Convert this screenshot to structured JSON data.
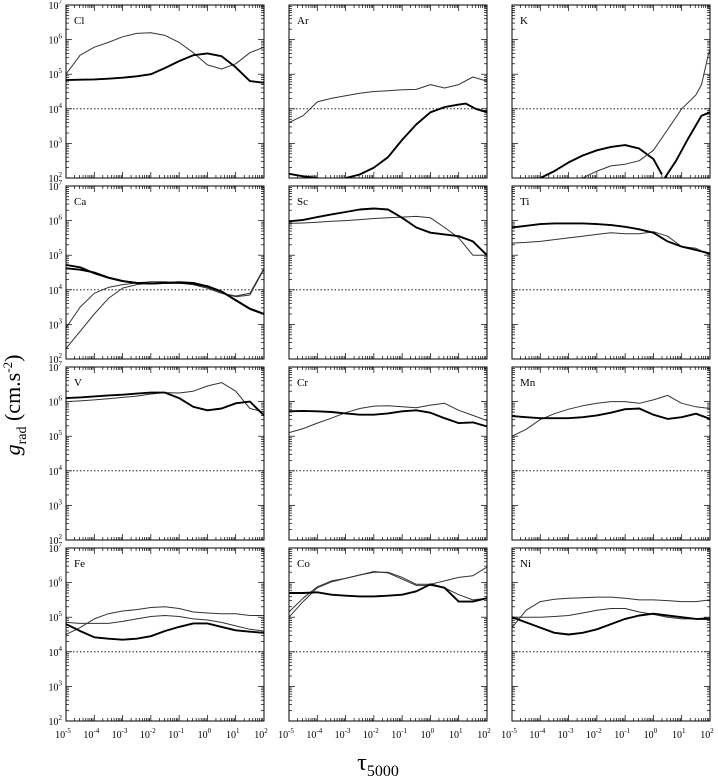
{
  "figure": {
    "ylabel": "g_rad (cm.s^-2)",
    "ylabel_main": "g",
    "ylabel_sub": "rad",
    "ylabel_rest": " (cm.s",
    "ylabel_sup": "-2",
    "ylabel_close": ")",
    "xlabel_main": "τ",
    "xlabel_sub": "5000"
  },
  "chart_data": [
    {
      "type": "line",
      "title": "Cl",
      "xscale": "log",
      "yscale": "log",
      "xlim": [
        1e-05,
        100
      ],
      "ylim": [
        100,
        10000000.0
      ],
      "reference_line": 10000.0,
      "x": [
        -5,
        -4.5,
        -4,
        -3.5,
        -3,
        -2.5,
        -2,
        -1.5,
        -1,
        -0.5,
        0,
        0.5,
        1,
        1.5,
        2
      ],
      "series": [
        {
          "style": "thin",
          "values": [
            5.0,
            5.55,
            5.78,
            5.92,
            6.08,
            6.18,
            6.2,
            6.12,
            5.92,
            5.62,
            5.27,
            5.15,
            5.3,
            5.62,
            5.78
          ]
        },
        {
          "style": "thick",
          "values": [
            4.83,
            4.84,
            4.85,
            4.87,
            4.9,
            4.94,
            5.0,
            5.18,
            5.38,
            5.55,
            5.6,
            5.52,
            5.2,
            4.8,
            4.75
          ]
        }
      ]
    },
    {
      "type": "line",
      "title": "Ar",
      "xscale": "log",
      "yscale": "log",
      "xlim": [
        1e-05,
        100
      ],
      "ylim": [
        100,
        10000000.0
      ],
      "reference_line": 10000.0,
      "x": [
        -5,
        -4.5,
        -4,
        -3.5,
        -3,
        -2.5,
        -2,
        -1.5,
        -1,
        -0.5,
        0,
        0.5,
        1,
        1.5,
        2
      ],
      "series": [
        {
          "style": "thin",
          "values": [
            3.6,
            3.8,
            4.2,
            4.3,
            4.38,
            4.45,
            4.5,
            4.52,
            4.55,
            4.56,
            4.7,
            4.6,
            4.7,
            4.92,
            4.8
          ],
          "start": -5
        },
        {
          "style": "thick",
          "values": [
            2.12,
            2.05,
            2.0
          ],
          "x": [
            -5,
            -4.5,
            -4
          ]
        },
        {
          "style": "thick",
          "values": [
            2.0,
            2.1,
            2.3,
            2.6,
            3.1,
            3.55,
            3.9,
            4.05,
            4.12,
            4.15,
            4.0,
            3.9
          ],
          "x": [
            -3,
            -2.5,
            -2,
            -1.5,
            -1,
            -0.5,
            0,
            0.5,
            1,
            1.25,
            1.6,
            2
          ]
        }
      ]
    },
    {
      "type": "line",
      "title": "K",
      "xscale": "log",
      "yscale": "log",
      "xlim": [
        1e-05,
        100
      ],
      "ylim": [
        100,
        10000000.0
      ],
      "reference_line": 10000.0,
      "x": [
        -4,
        -3.5,
        -3,
        -2.5,
        -2,
        -1.5,
        -1,
        -0.5,
        0,
        0.3
      ],
      "series": [
        {
          "style": "thick",
          "values": [
            2.0,
            2.2,
            2.45,
            2.65,
            2.8,
            2.9,
            2.95,
            2.85,
            2.55,
            2.1
          ]
        },
        {
          "style": "thin",
          "values": [
            2.0,
            2.2,
            2.35,
            2.4,
            2.5,
            2.8,
            3.4,
            4.0,
            4.4,
            4.7,
            5.6,
            5.7
          ],
          "x": [
            -2.5,
            -2,
            -1.5,
            -1,
            -0.5,
            0,
            0.5,
            1,
            1.5,
            1.7,
            1.95,
            2
          ]
        },
        {
          "style": "thick",
          "values": [
            2.0,
            2.5,
            3.1,
            3.8,
            3.9
          ],
          "x": [
            0.4,
            0.8,
            1.2,
            1.7,
            2
          ]
        }
      ]
    },
    {
      "type": "line",
      "title": "Ca",
      "xscale": "log",
      "yscale": "log",
      "xlim": [
        1e-05,
        100
      ],
      "ylim": [
        100,
        10000000.0
      ],
      "reference_line": 10000.0,
      "x": [
        -5,
        -4.5,
        -4,
        -3.5,
        -3,
        -2.5,
        -2,
        -1.5,
        -1,
        -0.5,
        0,
        0.5,
        1,
        1.5,
        2
      ],
      "series": [
        {
          "style": "thin",
          "values": [
            2.9,
            3.5,
            3.9,
            4.07,
            4.15,
            4.2,
            4.23,
            4.23,
            4.2,
            4.15,
            4.05,
            3.9,
            3.82,
            3.9,
            4.62
          ]
        },
        {
          "style": "thin",
          "values": [
            2.3,
            2.8,
            3.3,
            3.75,
            4.05,
            4.15,
            4.2,
            4.2,
            4.2,
            4.15,
            4.05,
            3.9,
            3.8,
            3.85,
            4.6
          ]
        },
        {
          "style": "thick",
          "values": [
            4.62,
            4.58,
            4.5,
            4.35,
            4.25,
            4.2,
            4.18,
            4.2,
            4.22,
            4.2,
            4.1,
            3.95,
            3.7,
            3.45,
            3.3
          ]
        },
        {
          "style": "thick",
          "values": [
            4.72,
            4.65,
            4.48,
            4.35,
            4.25,
            4.2,
            4.18,
            4.2,
            4.2,
            4.18,
            4.1,
            3.95,
            3.7,
            3.45,
            3.3
          ]
        }
      ]
    },
    {
      "type": "line",
      "title": "Sc",
      "xscale": "log",
      "yscale": "log",
      "xlim": [
        1e-05,
        100
      ],
      "ylim": [
        100,
        10000000.0
      ],
      "reference_line": 10000.0,
      "x": [
        -5,
        -4.5,
        -4,
        -3.5,
        -3,
        -2.5,
        -2,
        -1.5,
        -1,
        -0.5,
        0,
        0.5,
        1,
        1.5,
        2
      ],
      "series": [
        {
          "style": "thin",
          "values": [
            5.92,
            5.93,
            5.95,
            5.98,
            6.0,
            6.03,
            6.06,
            6.08,
            6.1,
            6.12,
            6.08,
            5.8,
            5.5,
            5.0,
            5.0
          ]
        },
        {
          "style": "thick",
          "values": [
            5.98,
            6.02,
            6.1,
            6.18,
            6.25,
            6.32,
            6.35,
            6.32,
            6.08,
            5.8,
            5.65,
            5.6,
            5.55,
            5.4,
            5.0
          ]
        }
      ]
    },
    {
      "type": "line",
      "title": "Ti",
      "xscale": "log",
      "yscale": "log",
      "xlim": [
        1e-05,
        100
      ],
      "ylim": [
        100,
        10000000.0
      ],
      "reference_line": 10000.0,
      "x": [
        -5,
        -4.5,
        -4,
        -3.5,
        -3,
        -2.5,
        -2,
        -1.5,
        -1,
        -0.5,
        0,
        0.5,
        1,
        1.5,
        2
      ],
      "series": [
        {
          "style": "thin",
          "values": [
            5.35,
            5.37,
            5.4,
            5.45,
            5.5,
            5.55,
            5.6,
            5.65,
            5.62,
            5.62,
            5.68,
            5.55,
            5.25,
            5.2,
            5.0
          ]
        },
        {
          "style": "thick",
          "values": [
            5.8,
            5.85,
            5.9,
            5.92,
            5.92,
            5.92,
            5.9,
            5.87,
            5.82,
            5.75,
            5.65,
            5.4,
            5.25,
            5.15,
            5.05
          ]
        }
      ]
    },
    {
      "type": "line",
      "title": "V",
      "xscale": "log",
      "yscale": "log",
      "xlim": [
        1e-05,
        100
      ],
      "ylim": [
        100,
        10000000.0
      ],
      "reference_line": 10000.0,
      "x": [
        -5,
        -4.5,
        -4,
        -3.5,
        -3,
        -2.5,
        -2,
        -1.5,
        -1,
        -0.5,
        0,
        0.5,
        1,
        1.5,
        2
      ],
      "series": [
        {
          "style": "thin",
          "values": [
            6.0,
            6.02,
            6.05,
            6.08,
            6.12,
            6.16,
            6.22,
            6.26,
            6.25,
            6.3,
            6.45,
            6.55,
            6.3,
            5.8,
            5.7
          ]
        },
        {
          "style": "thick",
          "values": [
            6.1,
            6.12,
            6.15,
            6.18,
            6.2,
            6.23,
            6.26,
            6.26,
            6.1,
            5.85,
            5.75,
            5.8,
            5.95,
            6.0,
            5.6
          ]
        }
      ]
    },
    {
      "type": "line",
      "title": "Cr",
      "xscale": "log",
      "yscale": "log",
      "xlim": [
        1e-05,
        100
      ],
      "ylim": [
        100,
        10000000.0
      ],
      "reference_line": 10000.0,
      "x": [
        -5,
        -4.5,
        -4,
        -3.5,
        -3,
        -2.5,
        -2,
        -1.5,
        -1,
        -0.5,
        0,
        0.5,
        1,
        1.5,
        2
      ],
      "series": [
        {
          "style": "thin",
          "values": [
            5.1,
            5.22,
            5.38,
            5.52,
            5.68,
            5.8,
            5.87,
            5.88,
            5.85,
            5.82,
            5.9,
            5.95,
            5.75,
            5.6,
            5.45
          ]
        },
        {
          "style": "thick",
          "values": [
            5.72,
            5.73,
            5.72,
            5.7,
            5.66,
            5.62,
            5.62,
            5.66,
            5.72,
            5.75,
            5.68,
            5.52,
            5.38,
            5.4,
            5.28
          ]
        }
      ]
    },
    {
      "type": "line",
      "title": "Mn",
      "xscale": "log",
      "yscale": "log",
      "xlim": [
        1e-05,
        100
      ],
      "ylim": [
        100,
        10000000.0
      ],
      "reference_line": 10000.0,
      "x": [
        -5,
        -4.5,
        -4,
        -3.5,
        -3,
        -2.5,
        -2,
        -1.5,
        -1,
        -0.5,
        0,
        0.5,
        1,
        1.5,
        2
      ],
      "series": [
        {
          "style": "thin",
          "values": [
            5.0,
            5.2,
            5.48,
            5.65,
            5.78,
            5.88,
            5.95,
            6.0,
            6.0,
            5.95,
            6.05,
            6.18,
            5.95,
            5.85,
            5.8
          ]
        },
        {
          "style": "thick",
          "values": [
            5.58,
            5.55,
            5.52,
            5.52,
            5.52,
            5.55,
            5.6,
            5.68,
            5.78,
            5.8,
            5.62,
            5.5,
            5.55,
            5.65,
            5.5
          ]
        }
      ]
    },
    {
      "type": "line",
      "title": "Fe",
      "xscale": "log",
      "yscale": "log",
      "xlim": [
        1e-05,
        100
      ],
      "ylim": [
        100,
        10000000.0
      ],
      "reference_line": 10000.0,
      "x": [
        -5,
        -4.5,
        -4,
        -3.5,
        -3,
        -2.5,
        -2,
        -1.5,
        -1,
        -0.5,
        0,
        0.5,
        1,
        1.5,
        2
      ],
      "series": [
        {
          "style": "thin",
          "values": [
            4.5,
            4.7,
            4.95,
            5.1,
            5.18,
            5.22,
            5.28,
            5.3,
            5.25,
            5.15,
            5.12,
            5.1,
            5.1,
            5.05,
            5.05
          ]
        },
        {
          "style": "thin",
          "values": [
            4.85,
            4.82,
            4.82,
            4.82,
            4.88,
            4.95,
            5.02,
            5.05,
            5.02,
            4.95,
            4.92,
            4.85,
            4.75,
            4.65,
            4.6
          ]
        },
        {
          "style": "thick",
          "values": [
            4.8,
            4.6,
            4.42,
            4.38,
            4.35,
            4.38,
            4.45,
            4.6,
            4.72,
            4.82,
            4.82,
            4.72,
            4.62,
            4.58,
            4.55
          ]
        }
      ]
    },
    {
      "type": "line",
      "title": "Co",
      "xscale": "log",
      "yscale": "log",
      "xlim": [
        1e-05,
        100
      ],
      "ylim": [
        100,
        10000000.0
      ],
      "reference_line": 10000.0,
      "x": [
        -5,
        -4.5,
        -4,
        -3.5,
        -3,
        -2.5,
        -2,
        -1.5,
        -1,
        -0.5,
        0,
        0.5,
        1,
        1.5,
        2
      ],
      "series": [
        {
          "style": "thin",
          "values": [
            5.0,
            5.45,
            5.85,
            6.02,
            6.12,
            6.22,
            6.3,
            6.3,
            6.15,
            5.95,
            5.95,
            6.05,
            6.15,
            6.2,
            6.45
          ]
        },
        {
          "style": "thin",
          "values": [
            5.15,
            5.55,
            5.88,
            6.05,
            6.12,
            6.22,
            6.32,
            6.28,
            6.1,
            5.92,
            5.92,
            5.85,
            5.65,
            5.5,
            5.55
          ]
        },
        {
          "style": "thick",
          "values": [
            5.7,
            5.7,
            5.72,
            5.65,
            5.62,
            5.6,
            5.6,
            5.62,
            5.65,
            5.75,
            5.95,
            5.85,
            5.45,
            5.45,
            5.55
          ]
        }
      ]
    },
    {
      "type": "line",
      "title": "Ni",
      "xscale": "log",
      "yscale": "log",
      "xlim": [
        1e-05,
        100
      ],
      "ylim": [
        100,
        10000000.0
      ],
      "reference_line": 10000.0,
      "x": [
        -5,
        -4.5,
        -4,
        -3.5,
        -3,
        -2.5,
        -2,
        -1.5,
        -1,
        -0.5,
        0,
        0.5,
        1,
        1.5,
        2
      ],
      "series": [
        {
          "style": "thin",
          "values": [
            4.7,
            5.2,
            5.45,
            5.52,
            5.55,
            5.56,
            5.58,
            5.58,
            5.55,
            5.5,
            5.5,
            5.48,
            5.45,
            5.45,
            5.5
          ]
        },
        {
          "style": "thin",
          "values": [
            5.0,
            5.0,
            5.0,
            5.02,
            5.05,
            5.12,
            5.2,
            5.25,
            5.25,
            5.15,
            5.08,
            5.0,
            4.95,
            4.95,
            5.0
          ]
        },
        {
          "style": "thick",
          "values": [
            5.0,
            4.85,
            4.7,
            4.55,
            4.5,
            4.55,
            4.65,
            4.8,
            4.95,
            5.05,
            5.1,
            5.05,
            5.0,
            4.95,
            4.95
          ]
        }
      ]
    }
  ]
}
